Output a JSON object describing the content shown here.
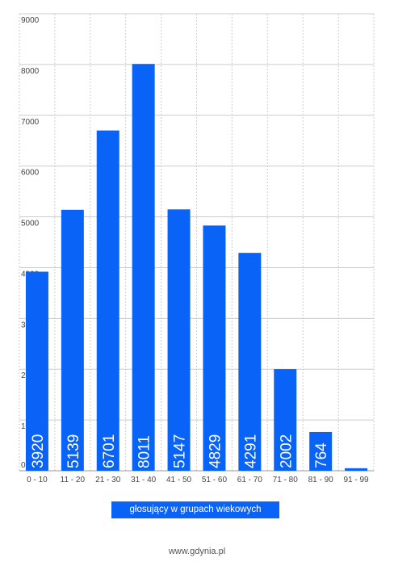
{
  "chart_data": {
    "type": "bar",
    "categories": [
      "0 - 10",
      "11 - 20",
      "21 - 30",
      "31 - 40",
      "41 - 50",
      "51 - 60",
      "61 - 70",
      "71 - 80",
      "81 - 90",
      "91 - 99"
    ],
    "values": [
      3920,
      5139,
      6701,
      8011,
      5147,
      4829,
      4291,
      2002,
      764,
      50
    ],
    "data_labels": [
      "3920",
      "5139",
      "6701",
      "8011",
      "5147",
      "4829",
      "4291",
      "2002",
      "764",
      ""
    ],
    "ylim": [
      0,
      9000
    ],
    "yticks": [
      0,
      1000,
      2000,
      3000,
      4000,
      5000,
      6000,
      7000,
      8000,
      9000
    ],
    "grid": true,
    "legend": "głosujący w grupach wiekowych",
    "legend_position": "bottom",
    "colors": {
      "bar": "#0a63f7",
      "grid": "#cccccc",
      "label": "#ffffff"
    }
  },
  "footer": "www.gdynia.pl"
}
